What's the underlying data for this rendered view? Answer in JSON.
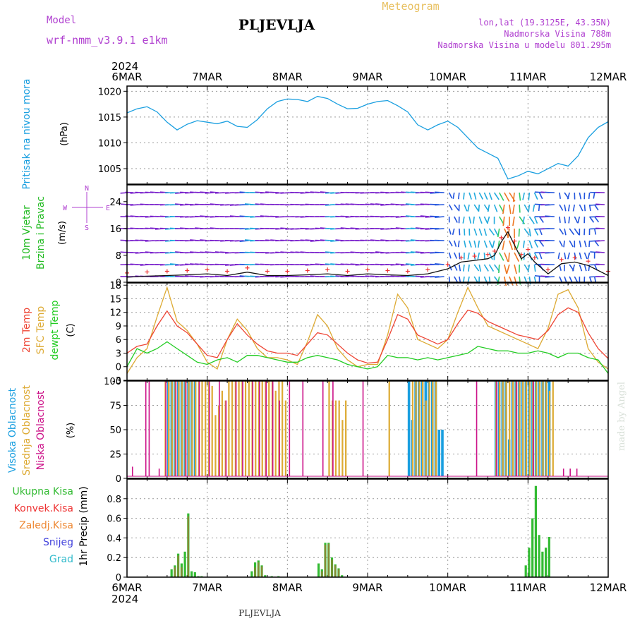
{
  "header": {
    "model_label": "Model",
    "model_name": "wrf-nmm_v3.9.1 e1km",
    "station": "PLJEVLJA",
    "meteogram": "Meteogram",
    "lonlat": "lon,lat (19.3125E, 43.35N)",
    "elevation": "Nadmorska Visina 788m",
    "model_elevation": "Nadmorska Visina u modelu 801.295m",
    "footer_station": "PLJEVLJA",
    "made_by": "made by Angel"
  },
  "time_axis": {
    "year": "2024",
    "ticks": [
      "6MAR",
      "7MAR",
      "8MAR",
      "9MAR",
      "10MAR",
      "11MAR",
      "12MAR"
    ]
  },
  "colors": {
    "pressure": "#1a9fe0",
    "wind_label": "#22bb22",
    "temp2m": "#ee4433",
    "sfc": "#ddaa33",
    "dewpt": "#22cc22",
    "high_cloud": "#1a9fe0",
    "mid_cloud": "#ddaa33",
    "low_cloud": "#cc1188",
    "purple": "#b040d0"
  },
  "panels": {
    "pressure": {
      "label": "Pritisak na nivou mora",
      "unit": "(hPa)"
    },
    "wind": {
      "label1": "10m Vjetar",
      "label2": "Brzina i Pravac",
      "unit": "(m/s)",
      "compass": [
        "N",
        "W",
        "E",
        "S"
      ]
    },
    "temperature": {
      "label1": "2m Temp",
      "label2": "SFC Temp",
      "label3": "dewpt Temp",
      "unit": "(C)"
    },
    "cloud": {
      "label1": "Visoka Oblacnost",
      "label2": "Srednja Oblacnost",
      "label3": "Niska Oblacnost",
      "unit": "(%)"
    },
    "precip": {
      "legend": [
        "Ukupna Kisa",
        "Konvek.Kisa",
        "Zaledj.Kisa",
        "Snijeg",
        "Grad"
      ],
      "legend_colors": [
        "#33bb33",
        "#ee3333",
        "#ee8833",
        "#4444dd",
        "#33bbcc"
      ],
      "ylabel": "1hr Precip (mm)"
    }
  },
  "chart_data": [
    {
      "type": "line",
      "panel": "pressure",
      "ylim": [
        1002,
        1021
      ],
      "yticks": [
        1005,
        1010,
        1015,
        1020
      ],
      "x_hours": [
        0,
        3,
        6,
        9,
        12,
        15,
        18,
        21,
        24,
        27,
        30,
        33,
        36,
        39,
        42,
        45,
        48,
        51,
        54,
        57,
        60,
        63,
        66,
        69,
        72,
        75,
        78,
        81,
        84,
        87,
        90,
        93,
        96,
        99,
        102,
        105,
        108,
        111,
        114,
        117,
        120,
        123,
        126,
        129,
        132,
        135,
        138,
        141,
        144
      ],
      "values": [
        1015.8,
        1016.6,
        1017.0,
        1016.0,
        1014.0,
        1012.5,
        1013.6,
        1014.3,
        1014.0,
        1013.7,
        1014.2,
        1013.2,
        1013.0,
        1014.5,
        1016.6,
        1018.0,
        1018.5,
        1018.4,
        1018.0,
        1019.0,
        1018.6,
        1017.5,
        1016.6,
        1016.7,
        1017.5,
        1018.0,
        1018.2,
        1017.2,
        1016.0,
        1013.5,
        1012.5,
        1013.5,
        1014.2,
        1013.0,
        1011.0,
        1009.0,
        1008.0,
        1007.0,
        1003.0,
        1003.6,
        1004.5,
        1004.0,
        1005.0,
        1006.0,
        1005.5,
        1007.5,
        1011.0,
        1013.0,
        1014.1
      ]
    },
    {
      "type": "line",
      "panel": "wind",
      "ylim": [
        0,
        29
      ],
      "yticks": [
        0,
        8,
        16,
        24
      ],
      "x_hours": [
        0,
        6,
        12,
        18,
        24,
        30,
        36,
        42,
        48,
        54,
        60,
        66,
        72,
        78,
        84,
        90,
        96,
        100,
        104,
        108,
        110,
        112,
        114,
        116,
        118,
        120,
        122,
        126,
        130,
        134,
        138,
        144
      ],
      "values": [
        1.5,
        1.8,
        2.0,
        2.2,
        2.5,
        2.0,
        3.0,
        2.0,
        2.0,
        2.2,
        2.5,
        2.0,
        2.5,
        2.2,
        2.0,
        2.5,
        4.0,
        6.0,
        6.5,
        7.0,
        8.0,
        12.0,
        15.0,
        11.0,
        7.0,
        8.5,
        6.0,
        2.5,
        5.5,
        6.0,
        5.0,
        2.0
      ]
    },
    {
      "type": "line",
      "panel": "temperature",
      "ylim": [
        -3,
        18.5
      ],
      "yticks": [
        -3,
        0,
        3,
        6,
        9,
        12,
        15,
        18
      ],
      "x_hours": [
        0,
        3,
        6,
        9,
        12,
        15,
        18,
        21,
        24,
        27,
        30,
        33,
        36,
        39,
        42,
        45,
        48,
        51,
        54,
        57,
        60,
        63,
        66,
        69,
        72,
        75,
        78,
        81,
        84,
        87,
        90,
        93,
        96,
        99,
        102,
        105,
        108,
        111,
        114,
        117,
        120,
        123,
        126,
        129,
        132,
        135,
        138,
        141,
        144
      ],
      "series": [
        {
          "name": "2m Temp",
          "values": [
            3.0,
            4.5,
            5.0,
            9.0,
            12.3,
            9.0,
            7.5,
            5.0,
            2.5,
            2.0,
            6.0,
            9.5,
            7.0,
            5.0,
            3.5,
            3.0,
            3.0,
            2.5,
            5.0,
            7.5,
            7.0,
            5.0,
            3.0,
            1.5,
            0.8,
            1.0,
            6.0,
            11.5,
            10.5,
            7.0,
            6.0,
            5.0,
            6.0,
            9.5,
            12.5,
            11.8,
            10.0,
            9.0,
            8.0,
            7.0,
            6.5,
            6.0,
            8.0,
            11.5,
            13.0,
            12.0,
            7.5,
            4.0,
            1.8
          ]
        },
        {
          "name": "SFC Temp",
          "values": [
            -1.5,
            2.0,
            4.0,
            11.0,
            17.5,
            10.0,
            8.0,
            5.0,
            1.0,
            -0.5,
            6.0,
            10.5,
            8.0,
            4.0,
            2.0,
            2.0,
            1.5,
            0.5,
            5.5,
            11.5,
            9.0,
            4.0,
            1.5,
            0.0,
            0.5,
            0.5,
            7.0,
            16.0,
            13.0,
            6.0,
            5.0,
            4.0,
            6.0,
            12.0,
            17.5,
            13.0,
            9.0,
            8.0,
            7.0,
            6.0,
            5.0,
            4.0,
            8.5,
            16.0,
            17.0,
            13.0,
            4.0,
            1.0,
            -0.5
          ]
        },
        {
          "name": "dewpt Temp",
          "values": [
            0.0,
            4.0,
            3.0,
            4.0,
            5.5,
            4.0,
            2.5,
            1.0,
            0.5,
            1.5,
            2.0,
            1.0,
            2.5,
            2.5,
            2.0,
            1.5,
            1.0,
            1.0,
            2.0,
            2.5,
            2.0,
            1.5,
            0.5,
            0.0,
            -0.5,
            0.0,
            2.5,
            2.0,
            2.0,
            1.5,
            2.0,
            1.5,
            2.0,
            2.5,
            3.0,
            4.5,
            4.0,
            3.5,
            3.5,
            3.0,
            3.0,
            3.5,
            3.0,
            2.0,
            3.0,
            3.0,
            2.0,
            1.5,
            -1.5
          ]
        }
      ]
    },
    {
      "type": "bar",
      "panel": "cloud",
      "ylim": [
        0,
        100
      ],
      "yticks": [
        0,
        25,
        50,
        75,
        100
      ],
      "series": [
        {
          "name": "Visoka Oblacnost",
          "x_hours": [
            12,
            13,
            14,
            15,
            16,
            17,
            18,
            19,
            20,
            84,
            85,
            86,
            87,
            88,
            89,
            90,
            91,
            92,
            93,
            94,
            110,
            111,
            112,
            113,
            114,
            115,
            116,
            117,
            118,
            119,
            120,
            121,
            122,
            123,
            124,
            125,
            126
          ],
          "values": [
            100,
            100,
            100,
            100,
            100,
            100,
            100,
            100,
            100,
            100,
            60,
            100,
            100,
            100,
            100,
            100,
            100,
            100,
            50,
            50,
            100,
            100,
            100,
            100,
            40,
            100,
            100,
            100,
            100,
            100,
            100,
            100,
            100,
            100,
            100,
            100,
            100
          ]
        },
        {
          "name": "Srednja Oblacnost",
          "x_hours": [
            11,
            12,
            13,
            14,
            15,
            16,
            17,
            18,
            19,
            20,
            21,
            22,
            23,
            24,
            25,
            26,
            27,
            28,
            29,
            30,
            31,
            32,
            33,
            34,
            35,
            36,
            37,
            38,
            39,
            40,
            41,
            42,
            43,
            44,
            45,
            46,
            47,
            60,
            61,
            62,
            63,
            64,
            65,
            78,
            85,
            86,
            87,
            88,
            89,
            90,
            91,
            92,
            110,
            111,
            112,
            113,
            114,
            115,
            116,
            117,
            118,
            119,
            120,
            121,
            122,
            123,
            124,
            125,
            126,
            127
          ],
          "values": [
            100,
            100,
            100,
            100,
            100,
            100,
            100,
            100,
            100,
            100,
            100,
            100,
            100,
            100,
            95,
            65,
            75,
            90,
            80,
            100,
            100,
            100,
            100,
            100,
            100,
            100,
            100,
            100,
            100,
            100,
            100,
            100,
            100,
            90,
            100,
            100,
            80,
            100,
            80,
            80,
            80,
            60,
            80,
            100,
            100,
            100,
            100,
            100,
            80,
            100,
            100,
            100,
            100,
            100,
            100,
            100,
            100,
            100,
            100,
            100,
            100,
            100,
            100,
            100,
            100,
            100,
            100,
            100,
            90,
            100
          ]
        },
        {
          "name": "Niska Oblacnost",
          "x_hours": [
            1,
            5,
            6,
            9,
            11,
            14,
            17,
            21,
            24,
            27,
            29,
            32,
            34,
            37,
            39,
            41,
            43,
            45,
            48,
            52,
            58,
            61,
            70,
            104,
            110,
            116,
            121,
            130,
            132,
            134
          ],
          "values": [
            12,
            100,
            100,
            10,
            100,
            100,
            100,
            100,
            100,
            100,
            80,
            100,
            100,
            100,
            100,
            100,
            100,
            80,
            100,
            100,
            100,
            100,
            100,
            100,
            100,
            100,
            100,
            10,
            10,
            10
          ]
        }
      ]
    },
    {
      "type": "bar",
      "panel": "precip",
      "ylim": [
        0,
        1.0
      ],
      "yticks": [
        0,
        0.2,
        0.4,
        0.6,
        0.8
      ],
      "series": [
        {
          "name": "Ukupna Kisa",
          "x_hours": [
            13,
            14,
            15,
            16,
            17,
            18,
            19,
            20,
            21,
            22,
            37,
            38,
            39,
            40,
            41,
            43,
            45,
            57,
            58,
            59,
            60,
            61,
            62,
            63,
            64,
            119,
            120,
            121,
            122,
            123,
            124,
            125,
            126
          ],
          "values": [
            0.08,
            0.12,
            0.24,
            0.14,
            0.26,
            0.65,
            0.06,
            0.05,
            0.01,
            0.01,
            0.06,
            0.15,
            0.17,
            0.12,
            0.02,
            0.01,
            0.01,
            0.14,
            0.08,
            0.35,
            0.35,
            0.2,
            0.13,
            0.09,
            0.02,
            0.12,
            0.3,
            0.6,
            0.93,
            0.43,
            0.26,
            0.3,
            0.41
          ]
        },
        {
          "name": "Konvek.Kisa",
          "x_hours": [
            14,
            15,
            16,
            18,
            38,
            39,
            40,
            58,
            59,
            60,
            61,
            62,
            63
          ],
          "values": [
            0.1,
            0.22,
            0.1,
            0.62,
            0.1,
            0.15,
            0.11,
            0.06,
            0.33,
            0.34,
            0.18,
            0.12,
            0.08
          ]
        }
      ]
    }
  ]
}
